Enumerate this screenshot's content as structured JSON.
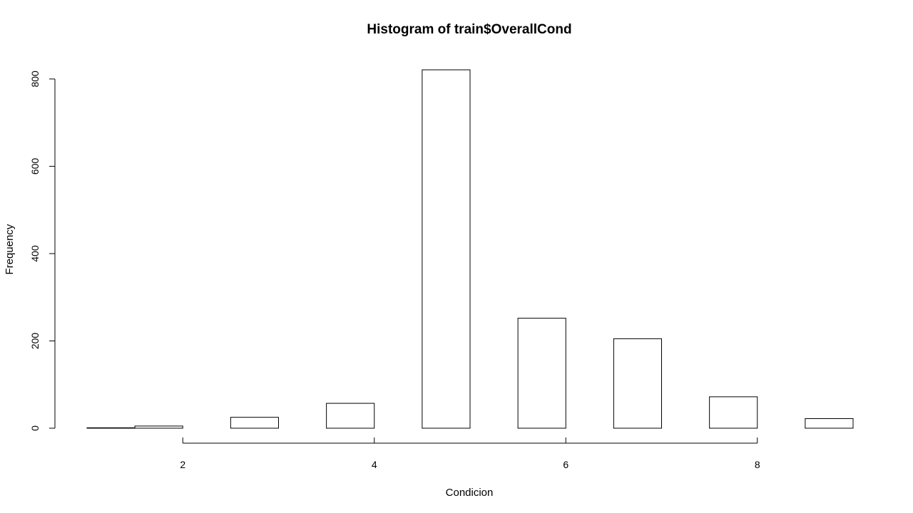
{
  "chart_data": {
    "type": "bar",
    "title": "Histogram of train$OverallCond",
    "xlabel": "Condicion",
    "ylabel": "Frequency",
    "bins": [
      {
        "start": 1.0,
        "end": 1.5,
        "value": 1
      },
      {
        "start": 1.5,
        "end": 2.0,
        "value": 5
      },
      {
        "start": 2.0,
        "end": 2.5,
        "value": 0
      },
      {
        "start": 2.5,
        "end": 3.0,
        "value": 25
      },
      {
        "start": 3.0,
        "end": 3.5,
        "value": 0
      },
      {
        "start": 3.5,
        "end": 4.0,
        "value": 57
      },
      {
        "start": 4.0,
        "end": 4.5,
        "value": 0
      },
      {
        "start": 4.5,
        "end": 5.0,
        "value": 821
      },
      {
        "start": 5.0,
        "end": 5.5,
        "value": 0
      },
      {
        "start": 5.5,
        "end": 6.0,
        "value": 252
      },
      {
        "start": 6.0,
        "end": 6.5,
        "value": 0
      },
      {
        "start": 6.5,
        "end": 7.0,
        "value": 205
      },
      {
        "start": 7.0,
        "end": 7.5,
        "value": 0
      },
      {
        "start": 7.5,
        "end": 8.0,
        "value": 72
      },
      {
        "start": 8.0,
        "end": 8.5,
        "value": 0
      },
      {
        "start": 8.5,
        "end": 9.0,
        "value": 22
      }
    ],
    "xlim": [
      1,
      9
    ],
    "ylim": [
      0,
      830
    ],
    "x_ticks": [
      2,
      4,
      6,
      8
    ],
    "y_ticks": [
      0,
      200,
      400,
      600,
      800
    ],
    "grid": false,
    "legend": "none"
  }
}
